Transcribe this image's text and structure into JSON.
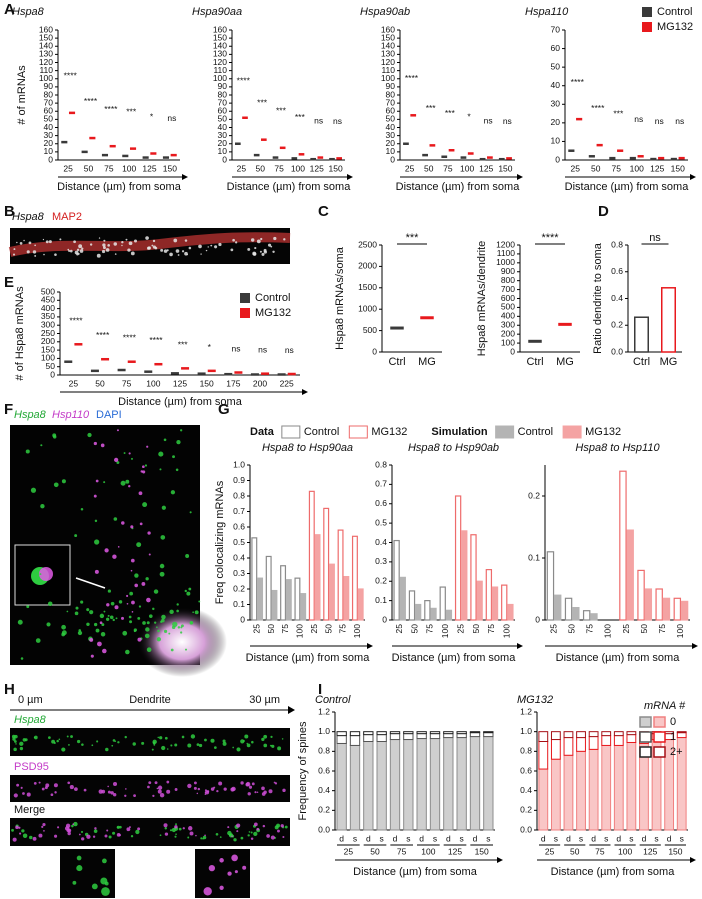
{
  "panel_labels": [
    "A",
    "B",
    "C",
    "D",
    "E",
    "F",
    "G",
    "H",
    "I"
  ],
  "images": {
    "B": {
      "labels": [
        "Hspa8",
        "MAP2"
      ]
    },
    "F": {
      "labels": [
        "Hspa8",
        "Hsp110",
        "DAPI"
      ]
    },
    "H": {
      "scale": [
        "0 µm",
        "Dendrite",
        "30 µm"
      ],
      "labels": [
        "Hspa8",
        "PSD95",
        "Merge"
      ]
    }
  },
  "chart_data": [
    {
      "type": "dot",
      "title": "Hspa8",
      "ylabel": "# of mRNAs",
      "xlabel": "Distance (µm) from soma",
      "categories": [
        25,
        50,
        75,
        100,
        125,
        150
      ],
      "series": [
        {
          "color": "#3a3a3a",
          "values": [
            22,
            10,
            6,
            5,
            3,
            3
          ]
        },
        {
          "color": "#e8191d",
          "values": [
            58,
            27,
            17,
            14,
            8,
            6
          ]
        }
      ],
      "ylim": [
        0,
        160
      ],
      "yticks": [
        0,
        10,
        20,
        30,
        40,
        50,
        60,
        70,
        80,
        90,
        100,
        110,
        120,
        130,
        140,
        150,
        160
      ],
      "significance": [
        "****",
        "****",
        "****",
        "***",
        "*",
        "ns"
      ]
    },
    {
      "type": "dot",
      "title": "Hspa90aa",
      "xlabel": "Distance (µm) from soma",
      "categories": [
        25,
        50,
        75,
        100,
        125,
        150
      ],
      "series": [
        {
          "color": "#3a3a3a",
          "values": [
            20,
            6,
            3,
            2,
            1,
            1
          ]
        },
        {
          "color": "#e8191d",
          "values": [
            52,
            25,
            15,
            7,
            3,
            2
          ]
        }
      ],
      "ylim": [
        0,
        160
      ],
      "yticks": [
        0,
        10,
        20,
        30,
        40,
        50,
        60,
        70,
        80,
        90,
        100,
        110,
        120,
        130,
        140,
        150,
        160
      ],
      "significance": [
        "****",
        "***",
        "***",
        "***",
        "ns",
        "ns"
      ]
    },
    {
      "type": "dot",
      "title": "Hspa90ab",
      "xlabel": "Distance (µm) from soma",
      "categories": [
        25,
        50,
        75,
        100,
        125,
        150
      ],
      "series": [
        {
          "color": "#3a3a3a",
          "values": [
            20,
            6,
            4,
            3,
            1,
            1
          ]
        },
        {
          "color": "#e8191d",
          "values": [
            55,
            18,
            12,
            8,
            3,
            2
          ]
        }
      ],
      "ylim": [
        0,
        160
      ],
      "yticks": [
        0,
        10,
        20,
        30,
        40,
        50,
        60,
        70,
        80,
        90,
        100,
        110,
        120,
        130,
        140,
        150,
        160
      ],
      "significance": [
        "****",
        "***",
        "***",
        "*",
        "ns",
        "ns"
      ]
    },
    {
      "type": "dot",
      "title": "Hspa110",
      "xlabel": "Distance (µm) from soma",
      "categories": [
        25,
        50,
        75,
        100,
        125,
        150
      ],
      "series": [
        {
          "name": "Control",
          "color": "#3a3a3a",
          "values": [
            5,
            2,
            1,
            1,
            0.5,
            0.5
          ]
        },
        {
          "name": "MG132",
          "color": "#e8191d",
          "values": [
            22,
            8,
            5,
            2,
            1,
            1
          ]
        }
      ],
      "ylim": [
        0,
        70
      ],
      "yticks": [
        0,
        10,
        20,
        30,
        40,
        50,
        60,
        70
      ],
      "significance": [
        "****",
        "****",
        "***",
        "ns",
        "ns",
        "ns"
      ],
      "legend": "upper right"
    },
    {
      "type": "dot",
      "ylabel": "# of Hspa8 mRNAs",
      "xlabel": "Distance (µm) from soma",
      "categories": [
        25,
        50,
        75,
        100,
        125,
        150,
        175,
        200,
        225
      ],
      "series": [
        {
          "name": "Control",
          "color": "#3a3a3a",
          "values": [
            80,
            25,
            30,
            20,
            10,
            8,
            5,
            3,
            3
          ]
        },
        {
          "name": "MG132",
          "color": "#e8191d",
          "values": [
            185,
            95,
            80,
            65,
            40,
            25,
            15,
            8,
            6
          ]
        }
      ],
      "ylim": [
        0,
        500
      ],
      "yticks": [
        0,
        50,
        100,
        150,
        200,
        250,
        300,
        350,
        400,
        450,
        500
      ],
      "significance": [
        "****",
        "****",
        "****",
        "****",
        "***",
        "*",
        "ns",
        "ns",
        "ns"
      ],
      "legend": "upper right"
    },
    {
      "type": "dot",
      "ylabel": "Hspa8 mRNAs/soma",
      "categories": [
        "Ctrl",
        "MG"
      ],
      "values": [
        560,
        800
      ],
      "colors": [
        "#3a3a3a",
        "#e8191d"
      ],
      "ylim": [
        0,
        2500
      ],
      "yticks": [
        0,
        500,
        1000,
        1500,
        2000,
        2500
      ],
      "significance": [
        "***"
      ]
    },
    {
      "type": "dot",
      "ylabel": "Hspa8 mRNAs/dendrite",
      "categories": [
        "Ctrl",
        "MG"
      ],
      "values": [
        120,
        310
      ],
      "colors": [
        "#3a3a3a",
        "#e8191d"
      ],
      "ylim": [
        0,
        1200
      ],
      "yticks": [
        0,
        100,
        200,
        300,
        400,
        500,
        600,
        700,
        800,
        900,
        1000,
        1100,
        1200
      ],
      "significance": [
        "****"
      ]
    },
    {
      "type": "bar",
      "ylabel": "Ratio dendrite to soma",
      "categories": [
        "Ctrl",
        "MG"
      ],
      "values": [
        0.26,
        0.48
      ],
      "colors": [
        "#3a3a3a",
        "#e8191d"
      ],
      "fill": false,
      "ylim": [
        0,
        0.8
      ],
      "yticks": [
        {
          "value": 0,
          "label": "0.0"
        },
        0.2,
        0.4,
        0.6,
        0.8
      ],
      "significance": [
        "ns"
      ]
    },
    {
      "type": "bar",
      "title": "Hspa8 to Hsp90aa",
      "ylabel": "Freq colocalizing mRNAs",
      "xlabel": "Distance (µm) from soma",
      "categories": [
        25,
        50,
        75,
        100,
        25,
        50,
        75,
        100
      ],
      "series": [
        {
          "name": "Control",
          "color": "#8a8a8a",
          "fill": false,
          "values": [
            0.53,
            0.41,
            0.35,
            0.27,
            null,
            null,
            null,
            null
          ]
        },
        {
          "name": "MG132",
          "color": "#ee6b6b",
          "fill": false,
          "values": [
            null,
            null,
            null,
            null,
            0.83,
            0.72,
            0.58,
            0.54
          ]
        },
        {
          "name": "Control",
          "color": "#b4b4b4",
          "fill": true,
          "values": [
            0.27,
            0.19,
            0.26,
            0.17,
            null,
            null,
            null,
            null
          ]
        },
        {
          "name": "MG132",
          "color": "#f4a3a3",
          "fill": true,
          "values": [
            null,
            null,
            null,
            null,
            0.55,
            0.36,
            0.28,
            0.2
          ]
        }
      ],
      "ylim": [
        0,
        1
      ],
      "yticks": [
        0,
        0.1,
        0.2,
        0.3,
        0.4,
        0.5,
        0.6,
        0.7,
        0.8,
        0.9,
        {
          "value": 1,
          "label": "1.0"
        }
      ],
      "legend": "top",
      "legend_titles": [
        "Data",
        "Simulation"
      ]
    },
    {
      "type": "bar",
      "title": "Hspa8 to Hsp90ab",
      "xlabel": "Distance (µm) from soma",
      "categories": [
        25,
        50,
        75,
        100,
        25,
        50,
        75,
        100
      ],
      "series": [
        {
          "color": "#8a8a8a",
          "fill": false,
          "values": [
            0.41,
            0.15,
            0.1,
            0.17,
            null,
            null,
            null,
            null
          ]
        },
        {
          "color": "#ee6b6b",
          "fill": false,
          "values": [
            null,
            null,
            null,
            null,
            0.64,
            0.44,
            0.26,
            0.18
          ]
        },
        {
          "color": "#b4b4b4",
          "fill": true,
          "values": [
            0.22,
            0.08,
            0.06,
            0.05,
            null,
            null,
            null,
            null
          ]
        },
        {
          "color": "#f4a3a3",
          "fill": true,
          "values": [
            null,
            null,
            null,
            null,
            0.46,
            0.2,
            0.17,
            0.08
          ]
        }
      ],
      "ylim": [
        0,
        0.8
      ],
      "yticks": [
        0,
        0.1,
        0.2,
        0.3,
        0.4,
        0.5,
        0.6,
        0.7,
        0.8
      ]
    },
    {
      "type": "bar",
      "title": "Hspa8 to Hsp110",
      "xlabel": "Distance (µm) from soma",
      "categories": [
        25,
        50,
        75,
        100,
        25,
        50,
        75,
        100
      ],
      "series": [
        {
          "color": "#8a8a8a",
          "fill": false,
          "values": [
            0.11,
            0.035,
            0.015,
            0,
            null,
            null,
            null,
            null
          ]
        },
        {
          "color": "#ee6b6b",
          "fill": false,
          "values": [
            null,
            null,
            null,
            null,
            0.24,
            0.08,
            0.05,
            0.035
          ]
        },
        {
          "color": "#b4b4b4",
          "fill": true,
          "values": [
            0.04,
            0.02,
            0.01,
            0,
            null,
            null,
            null,
            null
          ]
        },
        {
          "color": "#f4a3a3",
          "fill": true,
          "values": [
            null,
            null,
            null,
            null,
            0.145,
            0.05,
            0.035,
            0.03
          ]
        }
      ],
      "ylim": [
        0,
        0.25
      ],
      "yticks": [
        0,
        0.1,
        0.2
      ]
    },
    {
      "type": "stacked",
      "title": "Control",
      "ylabel": "Frequency of spines",
      "xlabel": "Distance (µm) from soma",
      "categories": [
        "d",
        "s",
        "d",
        "s",
        "d",
        "s",
        "d",
        "s",
        "d",
        "s",
        "d",
        "s"
      ],
      "groups": [
        25,
        50,
        75,
        100,
        125,
        150
      ],
      "series": [
        {
          "color": "#8c8c8c",
          "fill": "#cfcfcf",
          "values": [
            0.88,
            0.86,
            0.9,
            0.9,
            0.92,
            0.92,
            0.93,
            0.93,
            0.94,
            0.94,
            0.95,
            0.95
          ]
        },
        {
          "color": "#555555",
          "fill": "#ffffff",
          "values": [
            0.08,
            0.1,
            0.07,
            0.07,
            0.06,
            0.06,
            0.05,
            0.05,
            0.04,
            0.04,
            0.04,
            0.04
          ]
        },
        {
          "color": "#222222",
          "fill": "#ffffff",
          "values": [
            0.04,
            0.04,
            0.03,
            0.03,
            0.02,
            0.02,
            0.02,
            0.02,
            0.02,
            0.02,
            0.01,
            0.01
          ]
        }
      ],
      "ylim": [
        0,
        1.2
      ],
      "yticks": [
        {
          "value": 0,
          "label": "0.0"
        },
        0.2,
        0.4,
        0.6,
        0.8,
        {
          "value": 1,
          "label": "1.0"
        },
        1.2
      ]
    },
    {
      "type": "stacked",
      "title": "MG132",
      "xlabel": "Distance (µm) from soma",
      "categories": [
        "d",
        "s",
        "d",
        "s",
        "d",
        "s",
        "d",
        "s",
        "d",
        "s",
        "d",
        "s"
      ],
      "groups": [
        25,
        50,
        75,
        100,
        125,
        150
      ],
      "series": [
        {
          "name": "0",
          "color": "#f08080",
          "fill": "#f9c6c6",
          "values": [
            0.62,
            0.72,
            0.76,
            0.8,
            0.82,
            0.86,
            0.86,
            0.89,
            0.88,
            0.92,
            0.92,
            0.94
          ]
        },
        {
          "name": "1",
          "color": "#e8191d",
          "fill": "#ffffff",
          "values": [
            0.28,
            0.2,
            0.18,
            0.14,
            0.13,
            0.1,
            0.1,
            0.08,
            0.09,
            0.06,
            0.06,
            0.05
          ]
        },
        {
          "name": "2+",
          "color": "#a50f15",
          "fill": "#ffffff",
          "values": [
            0.1,
            0.08,
            0.06,
            0.06,
            0.05,
            0.04,
            0.04,
            0.03,
            0.03,
            0.02,
            0.02,
            0.01
          ]
        }
      ],
      "ylim": [
        0,
        1.2
      ],
      "yticks": [
        {
          "value": 0,
          "label": "0.0"
        },
        0.2,
        0.4,
        0.6,
        0.8,
        {
          "value": 1,
          "label": "1.0"
        },
        1.2
      ],
      "legend": "right",
      "legend_title": "mRNA #"
    }
  ]
}
